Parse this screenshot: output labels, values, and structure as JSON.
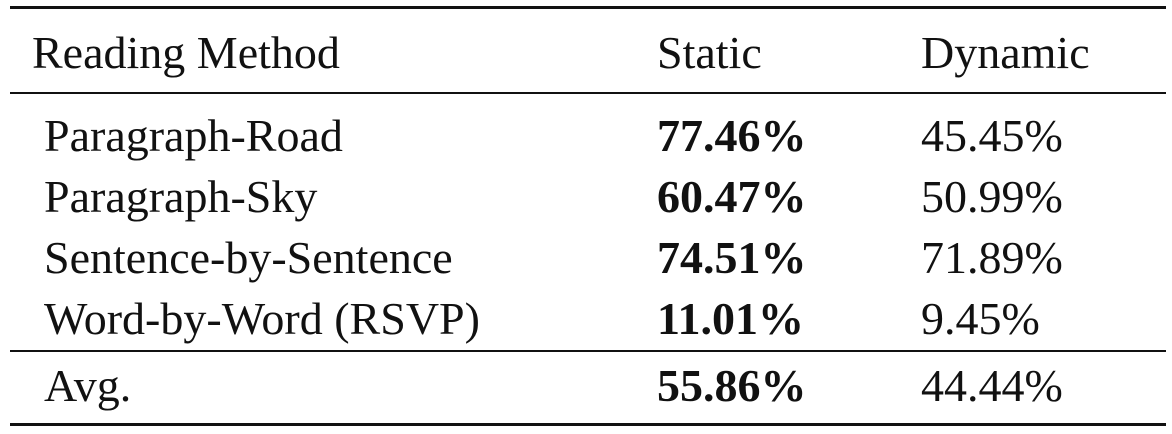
{
  "table": {
    "headers": [
      "Reading Method",
      "Static",
      "Dynamic"
    ],
    "rows": [
      {
        "method": "Paragraph-Road",
        "static": "77.46%",
        "dynamic": "45.45%"
      },
      {
        "method": "Paragraph-Sky",
        "static": "60.47%",
        "dynamic": "50.99%"
      },
      {
        "method": "Sentence-by-Sentence",
        "static": "74.51%",
        "dynamic": "71.89%"
      },
      {
        "method": "Word-by-Word (RSVP)",
        "static": "11.01%",
        "dynamic": "9.45%"
      }
    ],
    "avg": {
      "method": "Avg.",
      "static": "55.86%",
      "dynamic": "44.44%"
    }
  }
}
